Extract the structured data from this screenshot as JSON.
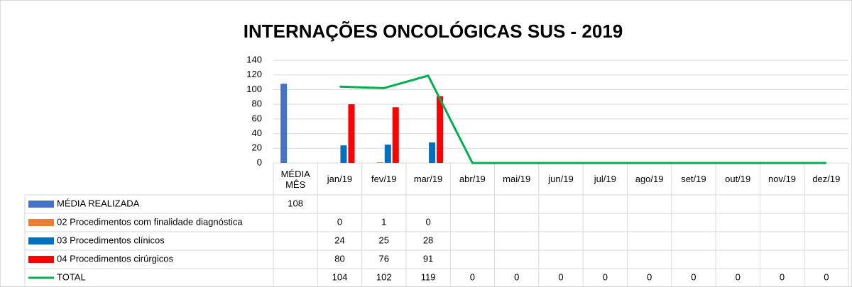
{
  "chart_data": {
    "type": "bar",
    "title": "INTERNAÇÕES ONCOLÓGICAS SUS - 2019",
    "categories": [
      "MÉDIA MÊS",
      "jan/19",
      "fev/19",
      "mar/19",
      "abr/19",
      "mai/19",
      "jun/19",
      "jul/19",
      "ago/19",
      "set/19",
      "out/19",
      "nov/19",
      "dez/19"
    ],
    "series": [
      {
        "name": "MÉDIA REALIZADA",
        "color": "#4472c4",
        "values": [
          108,
          null,
          null,
          null,
          null,
          null,
          null,
          null,
          null,
          null,
          null,
          null,
          null
        ]
      },
      {
        "name": "02 Procedimentos com finalidade diagnóstica",
        "color": "#ed7d31",
        "values": [
          null,
          0,
          1,
          0,
          null,
          null,
          null,
          null,
          null,
          null,
          null,
          null,
          null
        ]
      },
      {
        "name": "03 Procedimentos clínicos",
        "color": "#0070c0",
        "values": [
          null,
          24,
          25,
          28,
          null,
          null,
          null,
          null,
          null,
          null,
          null,
          null,
          null
        ]
      },
      {
        "name": "04 Procedimentos cirúrgicos",
        "color": "#ff0000",
        "values": [
          null,
          80,
          76,
          91,
          null,
          null,
          null,
          null,
          null,
          null,
          null,
          null,
          null
        ]
      },
      {
        "name": "TOTAL",
        "type": "line",
        "color": "#00b050",
        "values": [
          null,
          104,
          102,
          119,
          0,
          0,
          0,
          0,
          0,
          0,
          0,
          0,
          0
        ]
      }
    ],
    "ylim": [
      0,
      140
    ],
    "yticks": [
      0,
      20,
      40,
      60,
      80,
      100,
      120,
      140
    ],
    "grid": true
  }
}
